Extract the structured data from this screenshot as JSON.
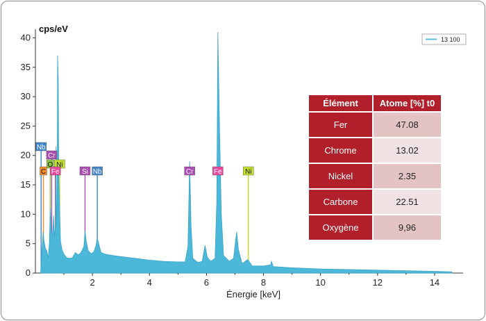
{
  "chart_data": {
    "type": "line",
    "ylabel": "cps/eV",
    "xlabel": "Énergie [keV]",
    "xlim": [
      0,
      15
    ],
    "ylim": [
      0,
      41
    ],
    "xticks": [
      2,
      4,
      6,
      8,
      10,
      12,
      14
    ],
    "yticks": [
      0,
      5,
      10,
      15,
      20,
      25,
      30,
      35,
      40
    ],
    "legend": {
      "label": "13 100",
      "position": "top-right",
      "color": "#5bbfe0"
    },
    "series": [
      {
        "name": "13 100",
        "color": "#4bb8d9",
        "points": [
          [
            0.18,
            0
          ],
          [
            0.22,
            3.0
          ],
          [
            0.27,
            7.0
          ],
          [
            0.3,
            5.5
          ],
          [
            0.35,
            4.2
          ],
          [
            0.4,
            3.8
          ],
          [
            0.45,
            2.6
          ],
          [
            0.49,
            5.0
          ],
          [
            0.52,
            11.0
          ],
          [
            0.56,
            7.0
          ],
          [
            0.6,
            6.5
          ],
          [
            0.64,
            9.8
          ],
          [
            0.67,
            6.0
          ],
          [
            0.7,
            8.0
          ],
          [
            0.72,
            21.5
          ],
          [
            0.74,
            8.0
          ],
          [
            0.76,
            12.0
          ],
          [
            0.78,
            37.0
          ],
          [
            0.8,
            33.0
          ],
          [
            0.82,
            16.0
          ],
          [
            0.85,
            11.0
          ],
          [
            0.88,
            5.5
          ],
          [
            0.93,
            4.0
          ],
          [
            1.0,
            3.2
          ],
          [
            1.1,
            2.6
          ],
          [
            1.2,
            2.5
          ],
          [
            1.3,
            2.6
          ],
          [
            1.4,
            3.5
          ],
          [
            1.5,
            3.1
          ],
          [
            1.6,
            3.5
          ],
          [
            1.7,
            4.5
          ],
          [
            1.74,
            7.2
          ],
          [
            1.78,
            5.5
          ],
          [
            1.85,
            3.8
          ],
          [
            1.95,
            3.3
          ],
          [
            2.05,
            3.6
          ],
          [
            2.13,
            4.8
          ],
          [
            2.17,
            6.0
          ],
          [
            2.22,
            5.0
          ],
          [
            2.3,
            3.5
          ],
          [
            2.45,
            3.2
          ],
          [
            2.7,
            3.0
          ],
          [
            3.0,
            2.8
          ],
          [
            3.5,
            2.5
          ],
          [
            4.0,
            2.2
          ],
          [
            4.5,
            2.0
          ],
          [
            5.0,
            1.9
          ],
          [
            5.25,
            1.9
          ],
          [
            5.35,
            4.5
          ],
          [
            5.41,
            19.0
          ],
          [
            5.46,
            8.0
          ],
          [
            5.52,
            2.5
          ],
          [
            5.7,
            1.8
          ],
          [
            5.85,
            2.0
          ],
          [
            5.95,
            4.7
          ],
          [
            6.03,
            2.7
          ],
          [
            6.15,
            2.0
          ],
          [
            6.3,
            2.5
          ],
          [
            6.36,
            12.0
          ],
          [
            6.4,
            41.0
          ],
          [
            6.46,
            24.0
          ],
          [
            6.52,
            10.0
          ],
          [
            6.6,
            3.0
          ],
          [
            6.8,
            2.0
          ],
          [
            6.95,
            2.5
          ],
          [
            7.02,
            5.5
          ],
          [
            7.06,
            7.0
          ],
          [
            7.12,
            4.0
          ],
          [
            7.25,
            1.6
          ],
          [
            7.45,
            2.3
          ],
          [
            7.6,
            1.2
          ],
          [
            8.0,
            1.2
          ],
          [
            8.25,
            1.4
          ],
          [
            8.28,
            2.0
          ],
          [
            8.34,
            1.1
          ],
          [
            9.0,
            0.9
          ],
          [
            10.0,
            0.7
          ],
          [
            11.0,
            0.6
          ],
          [
            12.0,
            0.5
          ],
          [
            13.0,
            0.4
          ],
          [
            14.0,
            0.3
          ],
          [
            14.6,
            0.2
          ],
          [
            14.62,
            0
          ]
        ]
      }
    ],
    "element_markers": [
      {
        "label": "C",
        "energy": 0.28,
        "color": "#f28c28",
        "text_color": "#111111",
        "row": 0
      },
      {
        "label": "O",
        "energy": 0.52,
        "color": "#8cc63f",
        "text_color": "#111111",
        "row": 1
      },
      {
        "label": "Ni",
        "energy": 0.85,
        "color": "#c5e02a",
        "text_color": "#111111",
        "row": 1
      },
      {
        "label": "Cr",
        "energy": 0.57,
        "color": "#a94bb3",
        "text_color": "#ffffff",
        "row": 2
      },
      {
        "label": "Nb",
        "energy": 0.2,
        "color": "#3f83c9",
        "text_color": "#ffffff",
        "row": 3
      },
      {
        "label": "Fe",
        "energy": 0.7,
        "color": "#e8479a",
        "text_color": "#ffffff",
        "row": 0
      },
      {
        "label": "Si",
        "energy": 1.74,
        "color": "#a94bb3",
        "text_color": "#ffffff",
        "row": 0
      },
      {
        "label": "Nb",
        "energy": 2.17,
        "color": "#3f83c9",
        "text_color": "#ffffff",
        "row": 0
      },
      {
        "label": "Cr",
        "energy": 5.41,
        "color": "#a94bb3",
        "text_color": "#ffffff",
        "row": 0
      },
      {
        "label": "Fe",
        "energy": 6.4,
        "color": "#e8479a",
        "text_color": "#ffffff",
        "row": 0
      },
      {
        "label": "Ni",
        "energy": 7.47,
        "color": "#c5e02a",
        "text_color": "#111111",
        "row": 0
      }
    ]
  },
  "table": {
    "headers": [
      "Élément",
      "Atome [%] t0"
    ],
    "rows": [
      {
        "element": "Fer",
        "value": "47.08"
      },
      {
        "element": "Chrome",
        "value": "13.02"
      },
      {
        "element": "Nickel",
        "value": "2.35"
      },
      {
        "element": "Carbone",
        "value": "22.51"
      },
      {
        "element": "Oxygène",
        "value": "9,96"
      }
    ]
  }
}
